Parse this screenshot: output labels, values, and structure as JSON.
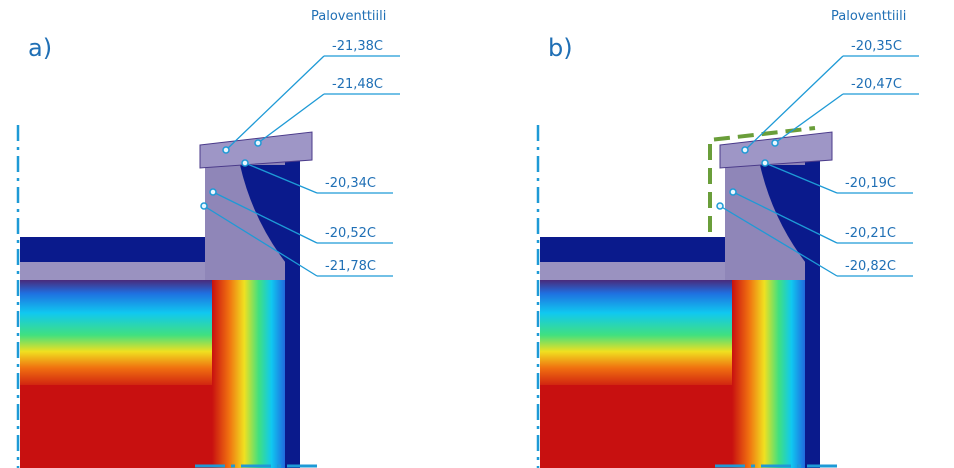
{
  "panels": [
    {
      "label": "a)",
      "title": "Paloventtiili",
      "points": [
        "-21,38C",
        "-21,48C",
        "-20,34C",
        "-20,52C",
        "-21,78C"
      ]
    },
    {
      "label": "b)",
      "title": "Paloventtiili",
      "points": [
        "-20,35C",
        "-20,47C",
        "-20,19C",
        "-20,21C",
        "-20,82C"
      ]
    }
  ]
}
